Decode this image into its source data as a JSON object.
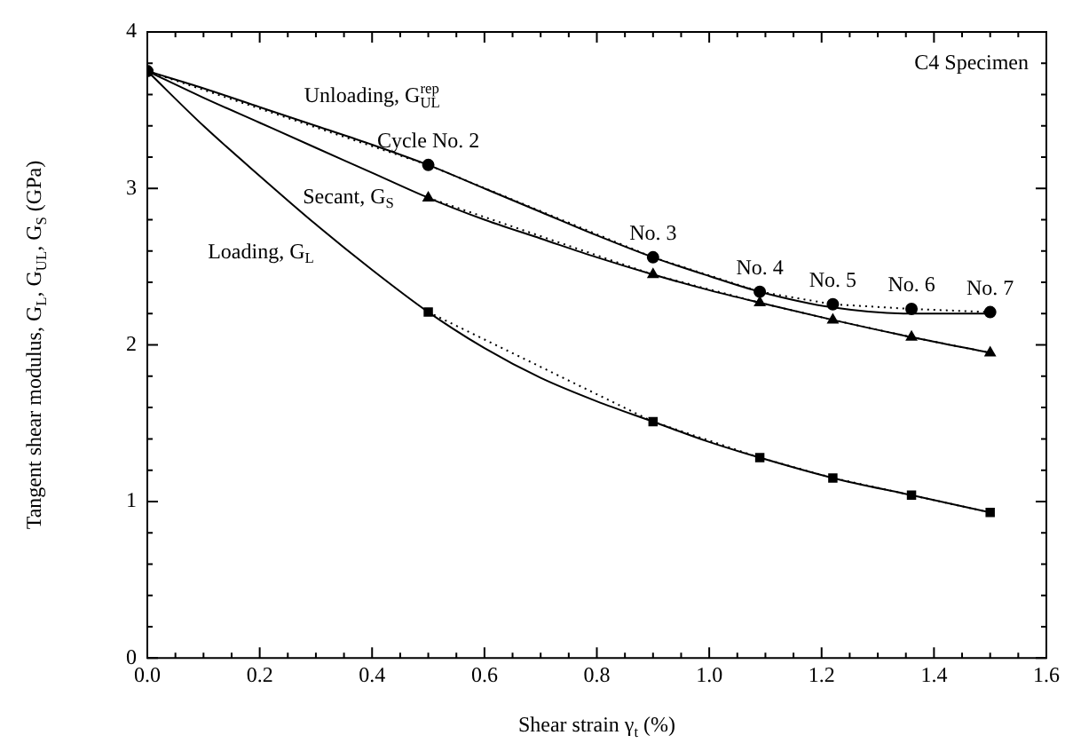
{
  "chart_data": {
    "type": "scatter",
    "xlabel": "Shear strain γ$_{t}$ (%)",
    "ylabel": "Tangent shear modulus, G$_{L}$, G$_{UL}$, G$_{S}$ (GPa)",
    "xlim": [
      0,
      1.6
    ],
    "xticks": [
      {
        "value": 0,
        "label": "0.0"
      },
      {
        "value": 0.05,
        "label": null
      },
      {
        "value": 0.1,
        "label": null
      },
      {
        "value": 0.15,
        "label": null
      },
      {
        "value": 0.2,
        "label": "0.2"
      },
      {
        "value": 0.25,
        "label": null
      },
      {
        "value": 0.3,
        "label": null
      },
      {
        "value": 0.35,
        "label": null
      },
      {
        "value": 0.4,
        "label": "0.4"
      },
      {
        "value": 0.45,
        "label": null
      },
      {
        "value": 0.5,
        "label": null
      },
      {
        "value": 0.55,
        "label": null
      },
      {
        "value": 0.6,
        "label": "0.6"
      },
      {
        "value": 0.65,
        "label": null
      },
      {
        "value": 0.7,
        "label": null
      },
      {
        "value": 0.75,
        "label": null
      },
      {
        "value": 0.8,
        "label": "0.8"
      },
      {
        "value": 0.85,
        "label": null
      },
      {
        "value": 0.9,
        "label": null
      },
      {
        "value": 0.95,
        "label": null
      },
      {
        "value": 1.0,
        "label": "1.0"
      },
      {
        "value": 1.05,
        "label": null
      },
      {
        "value": 1.1,
        "label": null
      },
      {
        "value": 1.15,
        "label": null
      },
      {
        "value": 1.2,
        "label": "1.2"
      },
      {
        "value": 1.25,
        "label": null
      },
      {
        "value": 1.3,
        "label": null
      },
      {
        "value": 1.35,
        "label": null
      },
      {
        "value": 1.4,
        "label": "1.4"
      },
      {
        "value": 1.45,
        "label": null
      },
      {
        "value": 1.5,
        "label": null
      },
      {
        "value": 1.55,
        "label": null
      },
      {
        "value": 1.6,
        "label": "1.6"
      }
    ],
    "ylim": [
      0,
      4
    ],
    "yticks": [
      0,
      {
        "value": 0.2,
        "label": null
      },
      {
        "value": 0.4,
        "label": null
      },
      {
        "value": 0.6,
        "label": null
      },
      {
        "value": 0.8,
        "label": null
      },
      1,
      {
        "value": 1.2,
        "label": null
      },
      {
        "value": 1.4,
        "label": null
      },
      {
        "value": 1.6,
        "label": null
      },
      {
        "value": 1.8,
        "label": null
      },
      2,
      {
        "value": 2.2,
        "label": null
      },
      {
        "value": 2.4,
        "label": null
      },
      {
        "value": 2.6,
        "label": null
      },
      {
        "value": 2.8,
        "label": null
      },
      3,
      {
        "value": 3.2,
        "label": null
      },
      {
        "value": 3.4,
        "label": null
      },
      {
        "value": 3.6,
        "label": null
      },
      {
        "value": 3.8,
        "label": null
      },
      4
    ],
    "grid": false,
    "legend": false,
    "series": [
      {
        "type": "line",
        "color": "#000000",
        "marker": "circle",
        "line_style": "dotted",
        "x": [
          0,
          0.5,
          0.9,
          1.09,
          1.22,
          1.36,
          1.5
        ],
        "values": [
          3.75,
          3.15,
          2.56,
          2.34,
          2.26,
          2.23,
          2.21
        ]
      },
      {
        "type": "line",
        "color": "#000000",
        "marker": "triangle",
        "line_style": "dotted",
        "x": [
          0.5,
          0.9,
          1.09,
          1.22,
          1.36,
          1.5
        ],
        "values": [
          2.94,
          2.45,
          2.27,
          2.16,
          2.05,
          1.95
        ]
      },
      {
        "type": "line",
        "color": "#000000",
        "marker": "square",
        "line_style": "dotted",
        "x": [
          0.5,
          0.9,
          1.09,
          1.22,
          1.36,
          1.5
        ],
        "values": [
          2.21,
          1.51,
          1.28,
          1.15,
          1.04,
          0.93
        ]
      },
      {
        "type": "line",
        "name": "Unloading, G$_{UL}$$^{rep}$",
        "color": "#000000",
        "marker": "none",
        "line_style": "solid",
        "x": [
          0,
          0.1,
          0.2,
          0.3,
          0.4,
          0.5,
          0.6,
          0.7,
          0.8,
          0.9,
          1.0,
          1.09,
          1.22,
          1.36,
          1.5
        ],
        "values": [
          3.75,
          3.64,
          3.52,
          3.4,
          3.28,
          3.15,
          3.0,
          2.85,
          2.7,
          2.56,
          2.44,
          2.34,
          2.24,
          2.2,
          2.2
        ]
      },
      {
        "type": "line",
        "name": "Secant, G$_{S}$",
        "color": "#000000",
        "marker": "none",
        "line_style": "solid",
        "x": [
          0,
          0.1,
          0.2,
          0.3,
          0.4,
          0.5,
          0.6,
          0.7,
          0.8,
          0.9,
          1.0,
          1.09,
          1.22,
          1.36,
          1.5
        ],
        "values": [
          3.75,
          3.58,
          3.42,
          3.26,
          3.1,
          2.94,
          2.8,
          2.68,
          2.56,
          2.45,
          2.35,
          2.27,
          2.16,
          2.05,
          1.95
        ]
      },
      {
        "type": "line",
        "name": "Loading, G$_{L}$",
        "color": "#000000",
        "marker": "none",
        "line_style": "solid",
        "x": [
          0,
          0.1,
          0.2,
          0.3,
          0.4,
          0.5,
          0.6,
          0.7,
          0.8,
          0.9,
          1.0,
          1.09,
          1.22,
          1.36,
          1.5
        ],
        "values": [
          3.75,
          3.4,
          3.08,
          2.77,
          2.48,
          2.21,
          1.98,
          1.79,
          1.64,
          1.51,
          1.38,
          1.28,
          1.15,
          1.04,
          0.93
        ]
      }
    ],
    "annotations": [
      "C4 Specimen",
      {
        "text": "Cycle No. 2",
        "x": 0.5,
        "y": 3.15
      },
      {
        "text": "No. 3",
        "x": 0.9,
        "y": 2.56
      },
      {
        "text": "No. 4",
        "x": 1.09,
        "y": 2.34
      },
      {
        "text": "No. 5",
        "x": 1.22,
        "y": 2.26
      },
      {
        "text": "No. 6",
        "x": 1.36,
        "y": 2.23
      },
      {
        "text": "No. 7",
        "x": 1.5,
        "y": 2.21
      }
    ]
  }
}
